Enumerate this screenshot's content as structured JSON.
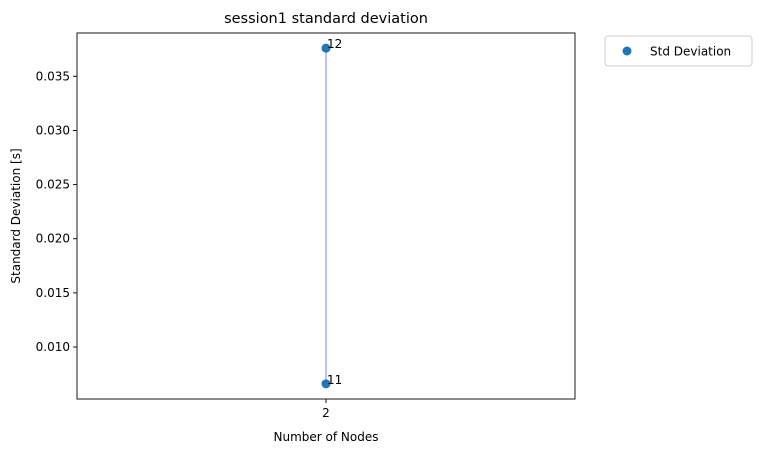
{
  "chart_data": {
    "type": "scatter",
    "title": "session1 standard deviation",
    "xlabel": "Number of Nodes",
    "ylabel": "Standard Deviation [s]",
    "x_ticks": [
      "2"
    ],
    "y_ticks": [
      "0.010",
      "0.015",
      "0.020",
      "0.025",
      "0.030",
      "0.035"
    ],
    "ylim": [
      0.0052,
      0.039
    ],
    "grid": false,
    "legend_position": "outside-top-right",
    "series": [
      {
        "name": "Std Deviation",
        "color": "#1f77b4",
        "points": [
          {
            "x": "2",
            "y": 0.0376,
            "label": "12"
          },
          {
            "x": "2",
            "y": 0.0066,
            "label": "11"
          }
        ]
      }
    ],
    "connector_color": "#98b1f5"
  }
}
